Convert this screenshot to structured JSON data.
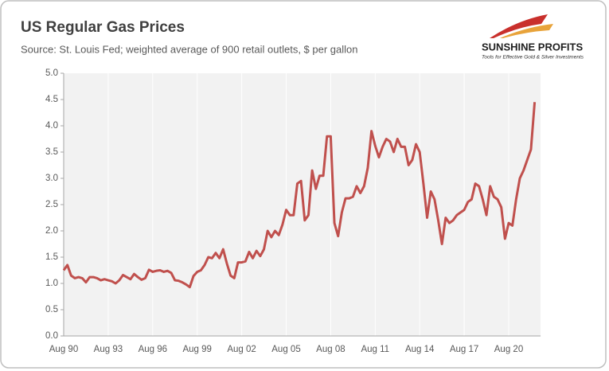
{
  "chart_data": {
    "type": "line",
    "title": "US Regular Gas Prices",
    "subtitle": "Source: St. Louis Fed; weighted average of 900 retail outlets, $ per gallon",
    "categories": [
      "Aug 90",
      null,
      null,
      null,
      null,
      null,
      null,
      null,
      null,
      null,
      null,
      null,
      "Aug 93",
      null,
      null,
      null,
      null,
      null,
      null,
      null,
      null,
      null,
      null,
      null,
      "Aug 96",
      null,
      null,
      null,
      null,
      null,
      null,
      null,
      null,
      null,
      null,
      null,
      "Aug 99",
      null,
      null,
      null,
      null,
      null,
      null,
      null,
      null,
      null,
      null,
      null,
      "Aug 02",
      null,
      null,
      null,
      null,
      null,
      null,
      null,
      null,
      null,
      null,
      null,
      "Aug 05",
      null,
      null,
      null,
      null,
      null,
      null,
      null,
      null,
      null,
      null,
      null,
      "Aug 08",
      null,
      null,
      null,
      null,
      null,
      null,
      null,
      null,
      null,
      null,
      null,
      "Aug 11",
      null,
      null,
      null,
      null,
      null,
      null,
      null,
      null,
      null,
      null,
      null,
      "Aug 14",
      null,
      null,
      null,
      null,
      null,
      null,
      null,
      null,
      null,
      null,
      null,
      "Aug 17",
      null,
      null,
      null,
      null,
      null,
      null,
      null,
      null,
      null,
      null,
      null,
      "Aug 20",
      null,
      null,
      null,
      null,
      null,
      null,
      null
    ],
    "series": [
      {
        "name": "US Regular Gas Price",
        "color": "#c0504d",
        "values": [
          1.25,
          1.35,
          1.15,
          1.1,
          1.12,
          1.1,
          1.02,
          1.12,
          1.12,
          1.1,
          1.06,
          1.08,
          1.06,
          1.04,
          1.0,
          1.06,
          1.16,
          1.12,
          1.08,
          1.18,
          1.12,
          1.07,
          1.1,
          1.26,
          1.22,
          1.24,
          1.25,
          1.22,
          1.24,
          1.2,
          1.06,
          1.05,
          1.02,
          0.98,
          0.93,
          1.14,
          1.22,
          1.25,
          1.35,
          1.5,
          1.48,
          1.58,
          1.48,
          1.65,
          1.38,
          1.15,
          1.1,
          1.4,
          1.4,
          1.42,
          1.6,
          1.48,
          1.62,
          1.52,
          1.65,
          2.0,
          1.88,
          2.0,
          1.92,
          2.12,
          2.4,
          2.3,
          2.3,
          2.9,
          2.95,
          2.2,
          2.3,
          3.15,
          2.8,
          3.05,
          3.05,
          3.8,
          3.8,
          2.15,
          1.9,
          2.35,
          2.62,
          2.62,
          2.65,
          2.85,
          2.72,
          2.85,
          3.2,
          3.9,
          3.62,
          3.4,
          3.6,
          3.75,
          3.7,
          3.5,
          3.75,
          3.6,
          3.6,
          3.25,
          3.35,
          3.65,
          3.5,
          2.9,
          2.25,
          2.75,
          2.6,
          2.2,
          1.75,
          2.25,
          2.15,
          2.2,
          2.3,
          2.35,
          2.4,
          2.55,
          2.6,
          2.9,
          2.85,
          2.6,
          2.3,
          2.85,
          2.65,
          2.6,
          2.45,
          1.85,
          2.15,
          2.1,
          2.6,
          3.0,
          3.15,
          3.35,
          3.55,
          4.45
        ]
      }
    ],
    "ylim": [
      0,
      5
    ],
    "yticks": [
      {
        "value": 0,
        "label": "0.0"
      },
      {
        "value": 0.5,
        "label": "0.5"
      },
      {
        "value": 1,
        "label": "1.0"
      },
      {
        "value": 1.5,
        "label": "1.5"
      },
      {
        "value": 2,
        "label": "2.0"
      },
      {
        "value": 2.5,
        "label": "2.5"
      },
      {
        "value": 3,
        "label": "3.0"
      },
      {
        "value": 3.5,
        "label": "3.5"
      },
      {
        "value": 4,
        "label": "4.0"
      },
      {
        "value": 4.5,
        "label": "4.5"
      },
      {
        "value": 5,
        "label": "5.0"
      }
    ],
    "grid": true
  },
  "logo": {
    "name": "SUNSHINE PROFITS",
    "tagline": "Tools for Effective Gold & Silver Investments"
  }
}
